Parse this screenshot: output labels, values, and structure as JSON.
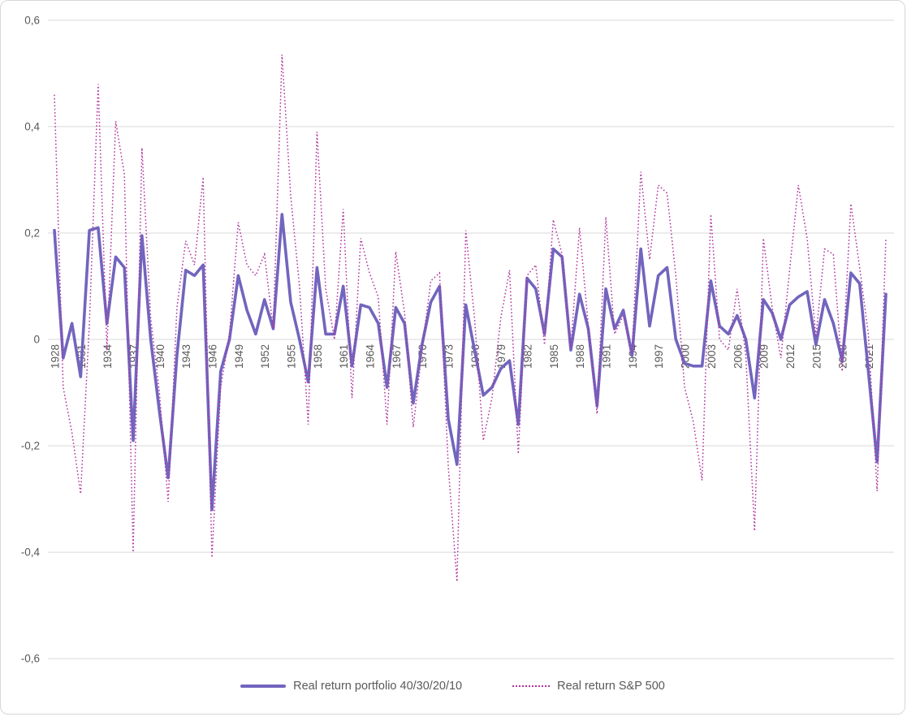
{
  "chart_data": {
    "type": "line",
    "title": "",
    "xlabel": "",
    "ylabel": "",
    "ylim": [
      -0.6,
      0.6
    ],
    "grid": "horizontal",
    "legend_position": "bottom",
    "x": [
      1928,
      1929,
      1930,
      1931,
      1932,
      1933,
      1934,
      1935,
      1936,
      1937,
      1938,
      1939,
      1940,
      1941,
      1942,
      1943,
      1944,
      1945,
      1946,
      1947,
      1948,
      1949,
      1950,
      1951,
      1952,
      1953,
      1954,
      1955,
      1956,
      1957,
      1958,
      1959,
      1960,
      1961,
      1962,
      1963,
      1964,
      1965,
      1966,
      1967,
      1968,
      1969,
      1970,
      1971,
      1972,
      1973,
      1974,
      1975,
      1976,
      1977,
      1978,
      1979,
      1980,
      1981,
      1982,
      1983,
      1984,
      1985,
      1986,
      1987,
      1988,
      1989,
      1990,
      1991,
      1992,
      1993,
      1994,
      1995,
      1996,
      1997,
      1998,
      1999,
      2000,
      2001,
      2002,
      2003,
      2004,
      2005,
      2006,
      2007,
      2008,
      2009,
      2010,
      2011,
      2012,
      2013,
      2014,
      2015,
      2016,
      2017,
      2018,
      2019,
      2020,
      2021,
      2022,
      2023
    ],
    "series": [
      {
        "name": "Real return portfolio 40/30/20/10",
        "style": "solid",
        "color": "#7165be",
        "values": [
          0.205,
          -0.035,
          0.03,
          -0.07,
          0.205,
          0.21,
          0.03,
          0.155,
          0.135,
          -0.19,
          0.195,
          0.0,
          -0.135,
          -0.26,
          -0.03,
          0.13,
          0.12,
          0.14,
          -0.32,
          -0.06,
          0.0,
          0.12,
          0.055,
          0.01,
          0.075,
          0.02,
          0.235,
          0.07,
          0.0,
          -0.08,
          0.135,
          0.01,
          0.01,
          0.1,
          -0.05,
          0.065,
          0.06,
          0.03,
          -0.09,
          0.06,
          0.03,
          -0.12,
          -0.01,
          0.07,
          0.1,
          -0.15,
          -0.235,
          0.065,
          -0.02,
          -0.105,
          -0.09,
          -0.055,
          -0.04,
          -0.16,
          0.115,
          0.095,
          0.01,
          0.17,
          0.155,
          -0.02,
          0.085,
          0.02,
          -0.125,
          0.095,
          0.02,
          0.055,
          -0.03,
          0.17,
          0.025,
          0.12,
          0.135,
          0.0,
          -0.045,
          -0.05,
          -0.05,
          0.11,
          0.025,
          0.01,
          0.045,
          0.0,
          -0.11,
          0.075,
          0.05,
          0.0,
          0.065,
          0.08,
          0.09,
          -0.01,
          0.075,
          0.03,
          -0.04,
          0.125,
          0.105,
          -0.06,
          -0.23,
          0.085
        ]
      },
      {
        "name": "Real return S&P 500",
        "style": "dotted",
        "color": "#b0329f",
        "values": [
          0.46,
          -0.09,
          -0.175,
          -0.29,
          0.03,
          0.48,
          -0.02,
          0.41,
          0.31,
          -0.4,
          0.36,
          0.04,
          -0.1,
          -0.305,
          0.06,
          0.185,
          0.14,
          0.305,
          -0.41,
          -0.09,
          0.01,
          0.22,
          0.14,
          0.12,
          0.16,
          0.02,
          0.535,
          0.27,
          0.1,
          -0.16,
          0.39,
          0.095,
          0.0,
          0.245,
          -0.11,
          0.19,
          0.125,
          0.08,
          -0.16,
          0.165,
          0.05,
          -0.165,
          -0.02,
          0.11,
          0.125,
          -0.24,
          -0.455,
          0.205,
          0.04,
          -0.19,
          -0.11,
          0.04,
          0.13,
          -0.215,
          0.12,
          0.14,
          -0.01,
          0.225,
          0.16,
          -0.015,
          0.21,
          0.025,
          -0.14,
          0.23,
          0.01,
          0.045,
          -0.025,
          0.315,
          0.15,
          0.29,
          0.275,
          0.12,
          -0.09,
          -0.155,
          -0.265,
          0.235,
          0.0,
          -0.02,
          0.095,
          -0.03,
          -0.36,
          0.19,
          0.06,
          -0.035,
          0.13,
          0.29,
          0.19,
          0.005,
          0.17,
          0.16,
          -0.06,
          0.255,
          0.135,
          0.01,
          -0.285,
          0.19
        ]
      }
    ],
    "y_ticks": [
      {
        "value": 0.6,
        "label": "0,6"
      },
      {
        "value": 0.4,
        "label": "0,4"
      },
      {
        "value": 0.2,
        "label": "0,2"
      },
      {
        "value": 0.0,
        "label": "0"
      },
      {
        "value": -0.2,
        "label": "-0,2"
      },
      {
        "value": -0.4,
        "label": "-0,4"
      },
      {
        "value": -0.6,
        "label": "-0,6"
      }
    ],
    "x_tick_years": [
      1928,
      1931,
      1934,
      1937,
      1940,
      1943,
      1946,
      1949,
      1952,
      1955,
      1958,
      1961,
      1964,
      1967,
      1970,
      1973,
      1976,
      1979,
      1982,
      1985,
      1988,
      1991,
      1994,
      1997,
      2000,
      2003,
      2006,
      2009,
      2012,
      2015,
      2018,
      2021
    ]
  },
  "legend": {
    "items": [
      {
        "label": "Real return portfolio 40/30/20/10",
        "swatch": "solid-line"
      },
      {
        "label": "Real return S&P 500",
        "swatch": "dotted-line"
      }
    ]
  },
  "colors": {
    "portfolio_line": "#7165be",
    "sp500_line": "#b0329f",
    "gridline": "#d9d9d9",
    "tick_text": "#595959",
    "background": "#ffffff",
    "frame_border": "#d7d7d7"
  }
}
